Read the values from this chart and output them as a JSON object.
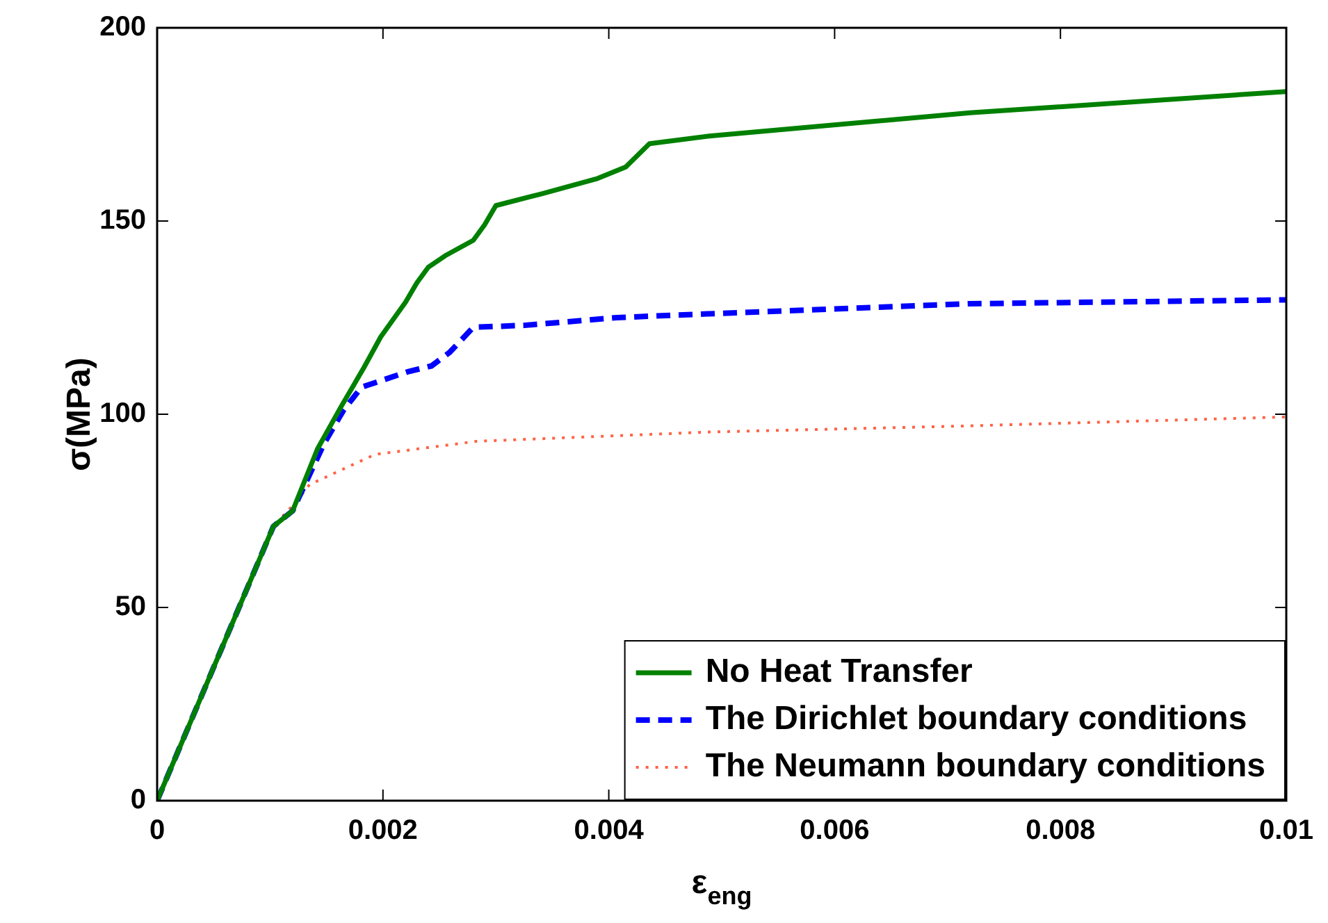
{
  "chart_data": {
    "type": "line",
    "xlabel": "ε$_{eng}$",
    "ylabel": "σ(MPa)",
    "xlim": [
      0,
      0.01
    ],
    "ylim": [
      0,
      200
    ],
    "xticks": [
      0,
      0.002,
      0.004,
      0.006,
      0.008,
      0.01
    ],
    "yticks": [
      0,
      50,
      100,
      150,
      200
    ],
    "grid": false,
    "legend": "bottom right",
    "marker": "none",
    "series": [
      {
        "name": "No Heat Transfer",
        "color": "#008000",
        "line_style": "solid",
        "x": [
          0,
          0.00103,
          0.0012,
          0.00142,
          0.00163,
          0.00183,
          0.00198,
          0.0022,
          0.0023,
          0.0024,
          0.00255,
          0.0028,
          0.0029,
          0.003,
          0.0034,
          0.0039,
          0.00415,
          0.00436,
          0.00489,
          0.0072,
          0.01
        ],
        "values": [
          0,
          71,
          75,
          91,
          102,
          112,
          120,
          129,
          134,
          138,
          141,
          145,
          149,
          154,
          157,
          161,
          164,
          170,
          172,
          178,
          183.5
        ]
      },
      {
        "name": "The Dirichlet boundary conditions",
        "color": "#0000ff",
        "line_style": "dashed",
        "x": [
          0,
          0.00103,
          0.0012,
          0.00148,
          0.00165,
          0.00181,
          0.00222,
          0.00243,
          0.00259,
          0.0028,
          0.00325,
          0.00407,
          0.00489,
          0.0072,
          0.01
        ],
        "values": [
          0,
          71,
          75,
          92.5,
          101,
          107,
          111,
          112.5,
          116,
          122.5,
          123,
          125,
          126,
          128.6,
          129.6
        ]
      },
      {
        "name": "The Neumann boundary conditions",
        "color": "#ff6347",
        "line_style": "dotted",
        "x": [
          0,
          0.00103,
          0.00122,
          0.00135,
          0.00193,
          0.00283,
          0.00489,
          0.0072,
          0.01
        ],
        "values": [
          0,
          71,
          77,
          81.8,
          89.6,
          93,
          95.4,
          97,
          99.3
        ]
      }
    ]
  }
}
